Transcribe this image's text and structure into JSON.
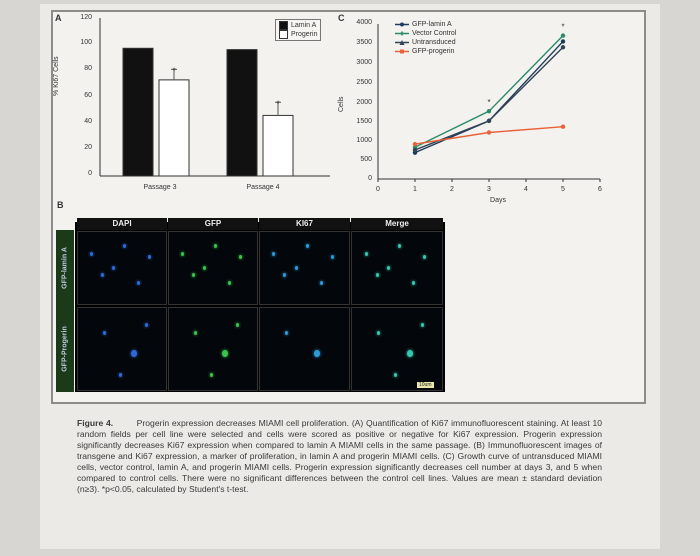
{
  "panel_letters": {
    "a": "A",
    "b": "B",
    "c": "C"
  },
  "chart_data": [
    {
      "type": "bar",
      "ylabel": "% Ki67 Cells",
      "ylim": [
        0,
        120
      ],
      "yticks": [
        "120",
        "100",
        "80",
        "60",
        "40",
        "20",
        "0"
      ],
      "categories": [
        "Passage 3",
        "Passage 4"
      ],
      "series": [
        {
          "name": "Lamin A",
          "values": [
            97,
            96
          ],
          "color": "#111111"
        },
        {
          "name": "Progerin",
          "values": [
            73,
            46
          ],
          "color": "#ffffff"
        }
      ],
      "error": [
        [
          0,
          8
        ],
        [
          0,
          10
        ]
      ],
      "significance": [
        "*",
        "*"
      ],
      "legend_position": "top-right"
    },
    {
      "type": "line",
      "ylabel": "Cells",
      "xlabel": "Days",
      "xlim": [
        0,
        6
      ],
      "ylim": [
        0,
        4000
      ],
      "xticks": [
        "0",
        "1",
        "2",
        "3",
        "4",
        "5",
        "6"
      ],
      "yticks": [
        "4000",
        "3500",
        "3000",
        "2500",
        "2000",
        "1500",
        "1000",
        "500",
        "0"
      ],
      "x": [
        1,
        3,
        5
      ],
      "series": [
        {
          "name": "GFP-lamin A",
          "values": [
            680,
            1500,
            3550
          ],
          "color": "#1f3a5a"
        },
        {
          "name": "Vector Control",
          "values": [
            820,
            1750,
            3700
          ],
          "color": "#2a8a6a"
        },
        {
          "name": "Untransduced",
          "values": [
            750,
            1500,
            3400
          ],
          "color": "#334455"
        },
        {
          "name": "GFP-progerin",
          "values": [
            900,
            1200,
            1350
          ],
          "color": "#e8623a"
        }
      ],
      "significance": [
        "",
        "*",
        "*"
      ],
      "legend_position": "top-left"
    }
  ],
  "micrographs": {
    "columns": [
      "DAPI",
      "GFP",
      "KI67",
      "Merge"
    ],
    "rows": [
      "GFP-lamin A",
      "GFP-Progerin"
    ],
    "scalebar": "10um"
  },
  "caption": {
    "label": "Figure 4.",
    "title": "Progerin expression decreases MIAMI cell proliferation.",
    "text": "(A) Quantification of Ki67 immunofluorescent staining. At least 10 random fields per cell line were selected and cells were scored as positive or negative for Ki67 expression. Progerin expression significantly decreases Ki67 expression when compared to lamin A MIAMI cells in the same passage. (B) Immunofluorescent images of transgene and Ki67 expression, a marker of proliferation, in lamin A and progerin MIAMI cells. (C) Growth curve of untransduced MIAMI cells, vector control, lamin A, and progerin MIAMI cells. Progerin expression significantly decreases cell number at days 3, and 5 when compared to control cells. There were no significant differences between the control cell lines. Values are mean ± standard deviation (n≥3). *p<0.05, calculated by Student's t-test."
  }
}
